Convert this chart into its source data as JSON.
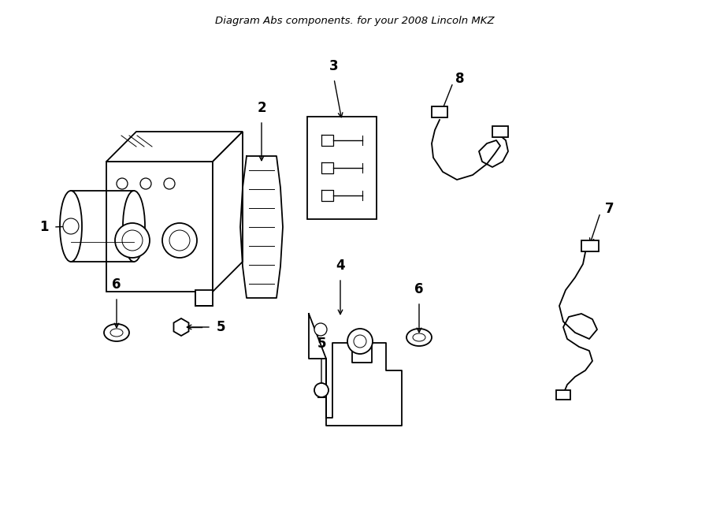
{
  "title": "Diagram Abs components. for your 2008 Lincoln MKZ",
  "background_color": "#ffffff",
  "line_color": "#000000",
  "figsize": [
    9.0,
    6.61
  ],
  "dpi": 100,
  "xlim": [
    0,
    900
  ],
  "ylim": [
    0,
    661
  ]
}
